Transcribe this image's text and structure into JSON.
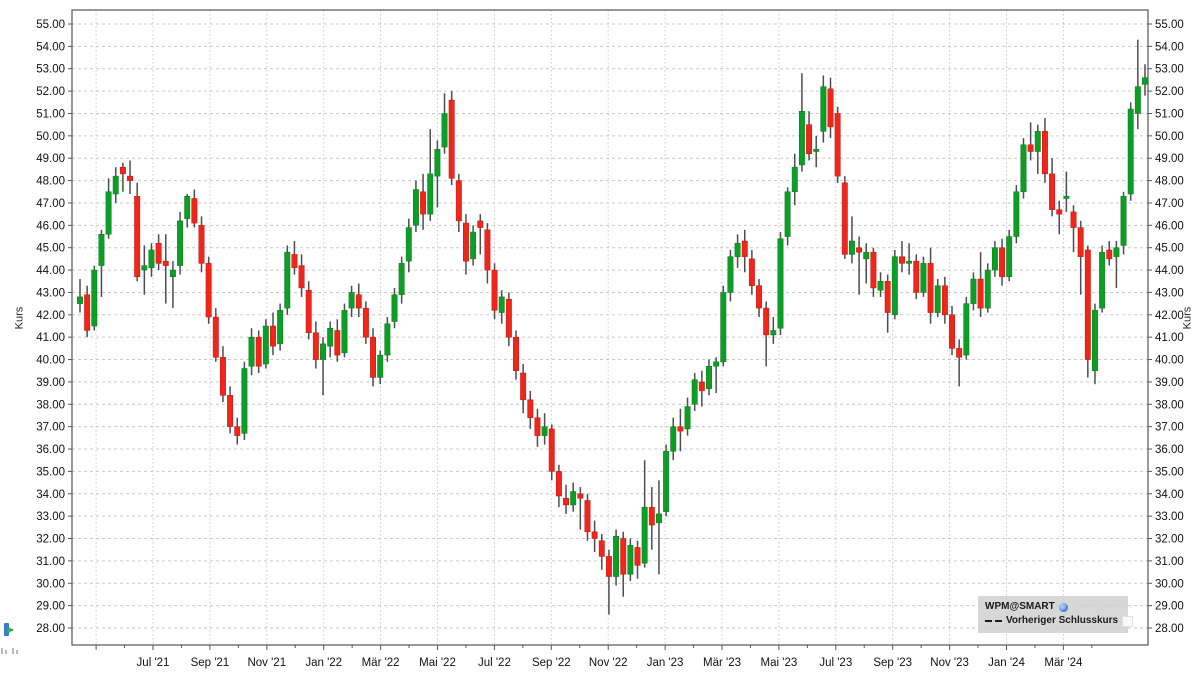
{
  "chart_data": {
    "type": "candlestick",
    "ylabel": "Kurs",
    "ylabel_right": "Kurs",
    "y_min": 28,
    "y_max": 55,
    "y_tick_step": 1,
    "y_tick_decimals": 2,
    "grid": true,
    "legend_position": "bottom-right",
    "x_labels": [
      "Jul '21",
      "Sep '21",
      "Nov '21",
      "Jan '22",
      "Mär '22",
      "Mai '22",
      "Jul '22",
      "Sep '22",
      "Nov '22",
      "Jan '23",
      "Mär '23",
      "Mai '23",
      "Jul '23",
      "Sep '23",
      "Nov '23",
      "Jan '24",
      "Mär '24"
    ],
    "legend": {
      "symbol": "WPM@SMART",
      "symbol_icon": "globe-icon",
      "prev_close": "Vorheriger Schlusskurs",
      "prev_close_icon": "dashed-line-icon"
    },
    "colors": {
      "up": "#0d9e26",
      "down": "#f0261b",
      "wick": "#4d4d4d",
      "grid": "#c9c9c9",
      "axis": "#555555",
      "text": "#111111"
    },
    "candles": [
      [
        42.5,
        43.6,
        42.1,
        42.8
      ],
      [
        42.9,
        43.3,
        41.0,
        41.3
      ],
      [
        41.5,
        44.2,
        41.3,
        44.0
      ],
      [
        44.2,
        45.8,
        42.8,
        45.6
      ],
      [
        45.6,
        48.1,
        45.4,
        47.5
      ],
      [
        47.4,
        48.6,
        47.0,
        48.2
      ],
      [
        48.6,
        48.8,
        47.5,
        48.3
      ],
      [
        48.2,
        48.9,
        47.4,
        48.0
      ],
      [
        47.3,
        47.9,
        43.5,
        43.7
      ],
      [
        44.0,
        45.1,
        42.9,
        44.2
      ],
      [
        44.1,
        45.2,
        43.7,
        44.9
      ],
      [
        45.2,
        45.6,
        44.0,
        44.3
      ],
      [
        44.4,
        45.6,
        42.5,
        44.2
      ],
      [
        43.7,
        44.4,
        42.3,
        44.0
      ],
      [
        44.2,
        46.6,
        43.8,
        46.2
      ],
      [
        46.3,
        47.4,
        45.9,
        47.3
      ],
      [
        47.2,
        47.6,
        45.9,
        46.1
      ],
      [
        46.0,
        46.4,
        43.9,
        44.3
      ],
      [
        44.3,
        44.6,
        41.6,
        41.9
      ],
      [
        41.9,
        42.3,
        39.9,
        40.1
      ],
      [
        40.1,
        40.6,
        38.1,
        38.4
      ],
      [
        38.4,
        38.8,
        36.7,
        37.0
      ],
      [
        37.0,
        37.4,
        36.2,
        36.6
      ],
      [
        36.7,
        39.9,
        36.4,
        39.6
      ],
      [
        39.7,
        41.4,
        39.3,
        41.0
      ],
      [
        41.0,
        41.3,
        39.4,
        39.7
      ],
      [
        39.8,
        41.8,
        39.6,
        41.5
      ],
      [
        41.5,
        42.1,
        40.2,
        40.6
      ],
      [
        40.7,
        42.5,
        40.4,
        42.2
      ],
      [
        42.3,
        45.1,
        42.0,
        44.8
      ],
      [
        44.7,
        45.3,
        43.8,
        44.1
      ],
      [
        44.2,
        44.7,
        42.8,
        43.2
      ],
      [
        43.1,
        43.5,
        40.9,
        41.2
      ],
      [
        41.2,
        41.7,
        39.6,
        40.0
      ],
      [
        40.0,
        41.0,
        38.4,
        40.7
      ],
      [
        40.6,
        41.7,
        40.1,
        41.4
      ],
      [
        41.3,
        41.8,
        39.9,
        40.2
      ],
      [
        40.3,
        42.5,
        40.1,
        42.2
      ],
      [
        42.3,
        43.3,
        41.9,
        43.0
      ],
      [
        42.9,
        43.4,
        41.9,
        42.3
      ],
      [
        42.3,
        42.6,
        40.7,
        41.0
      ],
      [
        41.0,
        41.4,
        38.8,
        39.2
      ],
      [
        39.2,
        40.4,
        38.9,
        40.2
      ],
      [
        40.2,
        41.9,
        39.9,
        41.6
      ],
      [
        41.7,
        43.2,
        41.4,
        42.9
      ],
      [
        42.9,
        44.6,
        42.5,
        44.3
      ],
      [
        44.4,
        46.3,
        43.9,
        45.9
      ],
      [
        46.0,
        48.0,
        45.7,
        47.6
      ],
      [
        47.5,
        48.3,
        45.8,
        46.5
      ],
      [
        46.5,
        50.3,
        46.2,
        48.3
      ],
      [
        48.2,
        49.8,
        46.8,
        49.4
      ],
      [
        49.5,
        51.9,
        49.2,
        51.0
      ],
      [
        51.6,
        52.0,
        47.8,
        48.1
      ],
      [
        48.0,
        48.3,
        45.7,
        46.2
      ],
      [
        46.1,
        46.5,
        43.8,
        44.4
      ],
      [
        44.5,
        46.0,
        44.2,
        45.7
      ],
      [
        46.2,
        46.5,
        44.7,
        45.9
      ],
      [
        45.8,
        46.1,
        43.4,
        44.0
      ],
      [
        44.0,
        44.3,
        41.8,
        42.2
      ],
      [
        42.1,
        43.1,
        41.6,
        42.8
      ],
      [
        42.7,
        43.0,
        40.6,
        41.0
      ],
      [
        41.0,
        41.3,
        39.1,
        39.5
      ],
      [
        39.4,
        39.8,
        37.6,
        38.2
      ],
      [
        38.2,
        38.6,
        36.9,
        37.4
      ],
      [
        37.4,
        37.8,
        36.1,
        36.6
      ],
      [
        36.6,
        37.6,
        36.2,
        37.0
      ],
      [
        36.9,
        37.1,
        34.6,
        35.0
      ],
      [
        35.0,
        35.3,
        33.4,
        33.9
      ],
      [
        33.8,
        34.4,
        33.1,
        33.5
      ],
      [
        33.5,
        34.5,
        33.2,
        34.1
      ],
      [
        34.0,
        34.3,
        32.4,
        33.8
      ],
      [
        33.7,
        34.0,
        31.9,
        32.3
      ],
      [
        32.3,
        32.8,
        31.4,
        32.0
      ],
      [
        31.9,
        32.2,
        30.6,
        31.2
      ],
      [
        31.2,
        31.5,
        28.6,
        30.3
      ],
      [
        30.3,
        32.4,
        29.9,
        32.1
      ],
      [
        32.0,
        32.3,
        29.4,
        30.4
      ],
      [
        30.4,
        32.0,
        30.1,
        31.7
      ],
      [
        31.6,
        31.9,
        30.2,
        30.8
      ],
      [
        30.9,
        35.5,
        30.7,
        33.4
      ],
      [
        33.4,
        34.3,
        31.5,
        32.6
      ],
      [
        32.7,
        34.6,
        30.4,
        33.1
      ],
      [
        33.2,
        36.2,
        33.0,
        35.9
      ],
      [
        35.9,
        37.4,
        35.5,
        37.0
      ],
      [
        37.0,
        37.8,
        35.9,
        36.8
      ],
      [
        36.9,
        38.3,
        36.6,
        37.9
      ],
      [
        38.0,
        39.4,
        37.7,
        39.1
      ],
      [
        39.0,
        39.5,
        37.9,
        38.6
      ],
      [
        38.7,
        40.0,
        38.4,
        39.7
      ],
      [
        39.7,
        40.1,
        38.5,
        39.9
      ],
      [
        39.9,
        43.3,
        39.7,
        43.0
      ],
      [
        43.0,
        44.9,
        42.6,
        44.6
      ],
      [
        44.6,
        45.6,
        44.1,
        45.2
      ],
      [
        45.3,
        45.8,
        43.9,
        44.6
      ],
      [
        44.5,
        44.9,
        42.9,
        43.3
      ],
      [
        43.3,
        43.6,
        41.9,
        42.3
      ],
      [
        42.3,
        42.6,
        39.7,
        41.1
      ],
      [
        41.1,
        41.9,
        40.7,
        41.3
      ],
      [
        41.4,
        45.7,
        41.1,
        45.4
      ],
      [
        45.5,
        47.7,
        45.1,
        47.5
      ],
      [
        47.5,
        49.2,
        46.9,
        48.6
      ],
      [
        48.7,
        52.8,
        48.4,
        51.1
      ],
      [
        50.5,
        51.1,
        48.9,
        49.2
      ],
      [
        49.3,
        50.0,
        48.6,
        49.4
      ],
      [
        50.2,
        52.7,
        49.7,
        52.2
      ],
      [
        52.1,
        52.6,
        49.9,
        50.4
      ],
      [
        51.0,
        51.3,
        47.9,
        48.2
      ],
      [
        47.9,
        48.2,
        44.5,
        44.7
      ],
      [
        44.7,
        46.4,
        44.3,
        45.3
      ],
      [
        45.0,
        45.5,
        42.9,
        44.8
      ],
      [
        44.5,
        45.2,
        43.4,
        44.8
      ],
      [
        44.8,
        45.0,
        42.8,
        43.2
      ],
      [
        43.1,
        43.9,
        42.8,
        43.5
      ],
      [
        43.5,
        43.8,
        41.2,
        42.1
      ],
      [
        42.0,
        44.9,
        41.8,
        44.6
      ],
      [
        44.6,
        45.3,
        43.9,
        44.3
      ],
      [
        44.3,
        45.2,
        43.8,
        44.4
      ],
      [
        44.4,
        44.7,
        42.7,
        43.0
      ],
      [
        43.0,
        44.6,
        42.8,
        44.3
      ],
      [
        44.3,
        45.0,
        41.6,
        42.1
      ],
      [
        42.1,
        43.6,
        41.9,
        43.3
      ],
      [
        43.3,
        43.7,
        41.6,
        42.0
      ],
      [
        42.0,
        42.4,
        40.2,
        40.5
      ],
      [
        40.5,
        40.9,
        38.8,
        40.1
      ],
      [
        40.2,
        42.8,
        40.0,
        42.5
      ],
      [
        42.5,
        43.9,
        42.2,
        43.6
      ],
      [
        43.6,
        44.8,
        41.9,
        42.3
      ],
      [
        42.3,
        44.3,
        42.1,
        44.0
      ],
      [
        44.0,
        45.3,
        43.7,
        45.0
      ],
      [
        45.0,
        45.4,
        43.3,
        43.7
      ],
      [
        43.7,
        45.8,
        43.5,
        45.5
      ],
      [
        45.5,
        47.8,
        45.2,
        47.5
      ],
      [
        47.5,
        49.9,
        47.2,
        49.6
      ],
      [
        49.6,
        50.6,
        48.9,
        49.3
      ],
      [
        49.3,
        50.5,
        48.3,
        50.2
      ],
      [
        50.2,
        50.8,
        47.9,
        48.3
      ],
      [
        48.3,
        49.0,
        46.4,
        46.7
      ],
      [
        46.7,
        47.1,
        45.6,
        46.5
      ],
      [
        47.2,
        48.4,
        46.6,
        47.3
      ],
      [
        46.6,
        46.9,
        44.8,
        45.9
      ],
      [
        45.9,
        46.2,
        42.9,
        44.6
      ],
      [
        44.9,
        45.1,
        39.2,
        40.0
      ],
      [
        39.5,
        42.5,
        38.9,
        42.2
      ],
      [
        42.3,
        45.1,
        42.1,
        44.8
      ],
      [
        44.9,
        45.3,
        44.2,
        44.5
      ],
      [
        44.6,
        45.3,
        43.2,
        45.0
      ],
      [
        45.1,
        47.5,
        44.7,
        47.3
      ],
      [
        47.4,
        51.5,
        47.1,
        51.2
      ],
      [
        51.0,
        54.3,
        50.3,
        52.2
      ],
      [
        52.3,
        53.2,
        51.8,
        52.6
      ]
    ]
  }
}
